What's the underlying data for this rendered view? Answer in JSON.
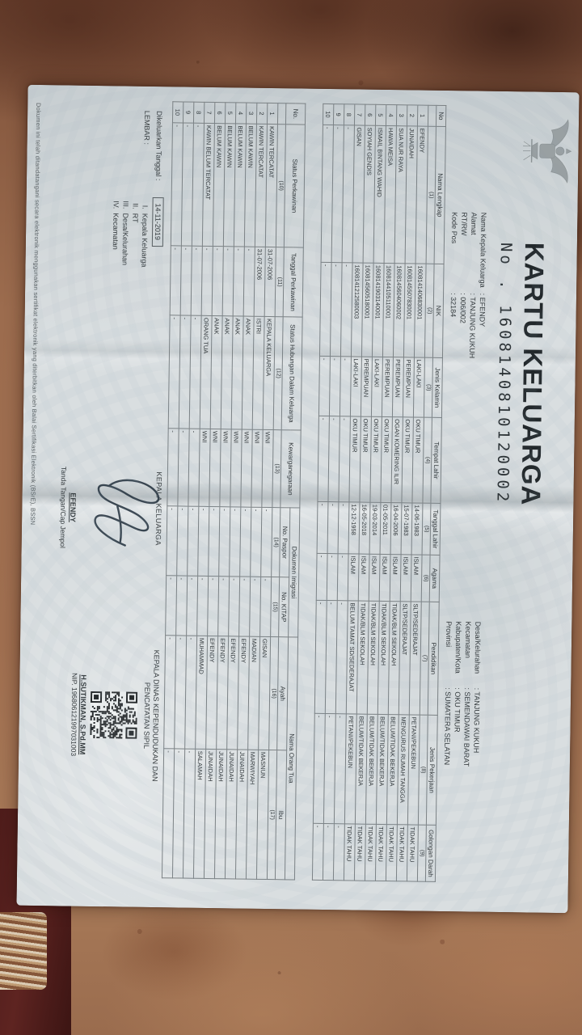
{
  "colors": {
    "paper": "#d9dee0",
    "ink": "#2f3538",
    "floor": "#96664a",
    "fabric": "#4f1d1b"
  },
  "document": {
    "title": "KARTU KELUARGA",
    "number_label": "No .",
    "number": "1608140810120002",
    "header_left": {
      "rows": [
        {
          "label": "Nama Kepala Keluarga",
          "value": ": EFENDY"
        },
        {
          "label": "Alamat",
          "value": ": TANJUNG KUKUH"
        },
        {
          "label": "RT/RW",
          "value": ": 006/002"
        },
        {
          "label": "Kode Pos",
          "value": ": 32184"
        }
      ]
    },
    "header_right": {
      "rows": [
        {
          "label": "Desa/Kelurahan",
          "value": ": TANJUNG KUKUH"
        },
        {
          "label": "Kecamatan",
          "value": ": SEMENDAWAI BARAT"
        },
        {
          "label": "Kabupaten/Kota",
          "value": ": OKU TIMUR"
        },
        {
          "label": "Provinsi",
          "value": ": SUMATERA SELATAN"
        }
      ]
    }
  },
  "table1": {
    "columns": [
      {
        "label": "No",
        "num": ""
      },
      {
        "label": "Nama Lengkap",
        "num": "(1)"
      },
      {
        "label": "NIK",
        "num": "(2)"
      },
      {
        "label": "Jenis Kelamin",
        "num": "(3)"
      },
      {
        "label": "Tempat Lahir",
        "num": "(4)"
      },
      {
        "label": "Tanggal Lahir",
        "num": "(5)"
      },
      {
        "label": "Agama",
        "num": "(6)"
      },
      {
        "label": "Pendidikan",
        "num": "(7)"
      },
      {
        "label": "Jenis Pekerjaan",
        "num": "(8)"
      },
      {
        "label": "Golongan Darah",
        "num": "(9)"
      }
    ],
    "rows": [
      [
        "1",
        "EFENDY",
        "1608141406830001",
        "LAKI-LAKI",
        "OKU TIMUR",
        "14-06-1983",
        "ISLAM",
        "SLTP/SEDERAJAT",
        "PETANI/PEKEBUN",
        "TIDAK TAHU"
      ],
      [
        "2",
        "JUNAIDAH",
        "1608145507830001",
        "PEREMPUAN",
        "OKU TIMUR",
        "15-07-1983",
        "ISLAM",
        "SLTP/SEDERAJAT",
        "MENGURUS RUMAH TANGGA",
        "TIDAK TAHU"
      ],
      [
        "3",
        "SUA NUR RAYA",
        "1608145604060002",
        "PEREMPUAN",
        "OGAN KOMERING ILIR",
        "16-04-2006",
        "ISLAM",
        "TIDAK/BLM SEKOLAH",
        "BELUM/TIDAK BEKERJA",
        "TIDAK TAHU"
      ],
      [
        "4",
        "HAWA MEISA",
        "1608144105110001",
        "PEREMPUAN",
        "OKU TIMUR",
        "01-05-2011",
        "ISLAM",
        "TIDAK/BLM SEKOLAH",
        "BELUM/TIDAK BEKERJA",
        "TIDAK TAHU"
      ],
      [
        "5",
        "ISMAIL BINTANG WAHID",
        "1608141903140001",
        "LAKI-LAKI",
        "OKU TIMUR",
        "19-03-2014",
        "ISLAM",
        "TIDAK/BLM SEKOLAH",
        "BELUM/TIDAK BEKERJA",
        "TIDAK TAHU"
      ],
      [
        "6",
        "SOYIAH GENDIS",
        "1608145605180001",
        "PEREMPUAN",
        "OKU TIMUR",
        "16-05-2018",
        "ISLAM",
        "TIDAK/BLM SEKOLAH",
        "BELUM/TIDAK BEKERJA",
        "TIDAK TAHU"
      ],
      [
        "7",
        "GISAN",
        "1608141212580003",
        "LAKI-LAKI",
        "OKU TIMUR",
        "12-12-1958",
        "ISLAM",
        "BELUM TAMAT SD/SEDERAJAT",
        "PETANI/PEKEBUN",
        "TIDAK TAHU"
      ],
      [
        "8",
        "-",
        "-",
        "-",
        "-",
        "-",
        "-",
        "-",
        "-",
        "-"
      ],
      [
        "9",
        "-",
        "-",
        "-",
        "-",
        "-",
        "-",
        "-",
        "-",
        "-"
      ],
      [
        "10",
        "-",
        "-",
        "-",
        "-",
        "-",
        "-",
        "-",
        "-",
        "-"
      ]
    ]
  },
  "table2": {
    "groups": [
      {
        "label": "Dokumen Imigrasi"
      },
      {
        "label": "Nama Orang Tua"
      }
    ],
    "columns": [
      {
        "label": "No.",
        "num": ""
      },
      {
        "label": "Status Perkawinan",
        "num": "(10)"
      },
      {
        "label": "Tanggal Perkawinan",
        "num": "(11)"
      },
      {
        "label": "Status Hubungan Dalam Keluarga",
        "num": "(12)"
      },
      {
        "label": "Kewarganegaraan",
        "num": "(13)"
      },
      {
        "label": "No. Paspor",
        "num": "(14)"
      },
      {
        "label": "No. KITAP",
        "num": "(15)"
      },
      {
        "label": "Ayah",
        "num": "(16)"
      },
      {
        "label": "Ibu",
        "num": "(17)"
      }
    ],
    "rows": [
      [
        "1",
        "KAWIN TERCATAT",
        "31-07-2006",
        "KEPALA KELUARGA",
        "WNI",
        "-",
        "-",
        "GISAN",
        "MASNUN"
      ],
      [
        "2",
        "KAWIN TERCATAT",
        "31-07-2006",
        "ISTRI",
        "WNI",
        "-",
        "-",
        "MADIAN",
        "MARWIYAH"
      ],
      [
        "3",
        "BELUM KAWIN",
        "-",
        "ANAK",
        "WNI",
        "-",
        "-",
        "EFENDY",
        "JUNAIDAH"
      ],
      [
        "4",
        "BELUM KAWIN",
        "-",
        "ANAK",
        "WNI",
        "-",
        "-",
        "EFENDY",
        "JUNAIDAH"
      ],
      [
        "5",
        "BELUM KAWIN",
        "-",
        "ANAK",
        "WNI",
        "-",
        "-",
        "EFENDY",
        "JUNAIDAH"
      ],
      [
        "6",
        "BELUM KAWIN",
        "-",
        "ANAK",
        "WNI",
        "-",
        "-",
        "EFENDY",
        "JUNAIDAH"
      ],
      [
        "7",
        "KAWIN BELUM TERCATAT",
        "-",
        "ORANG TUA",
        "WNI",
        "-",
        "-",
        "MUHAMMAD",
        "SALAMAH"
      ],
      [
        "8",
        "-",
        "-",
        "-",
        "-",
        "-",
        "-",
        "-",
        "-"
      ],
      [
        "9",
        "-",
        "-",
        "-",
        "-",
        "-",
        "-",
        "-",
        "-"
      ],
      [
        "10",
        "-",
        "-",
        "-",
        "-",
        "-",
        "-",
        "-",
        "-"
      ]
    ]
  },
  "footer": {
    "issued_label": "Dikeluarkan Tanggal :",
    "issued_date": "14-11-2019",
    "lembar_label": "LEMBAR :",
    "lembar_items": [
      {
        "num": "I.",
        "text": "Kepala Keluarga"
      },
      {
        "num": "II.",
        "text": "RT"
      },
      {
        "num": "III.",
        "text": "Desa/Kelurahan"
      },
      {
        "num": "IV.",
        "text": "Kecamatan"
      }
    ],
    "head_title": "KEPALA KELUARGA",
    "head_name": "EFENDY",
    "head_caption": "Tanda Tangan/Cap Jempol",
    "official_title": "KEPALA DINAS KEPENDUDUKAN DAN\nPENCATATAN SIPIL",
    "official_name": "H.SUTIKMAN, S.Pd.MM",
    "official_nip": "NIP. 196806121997031003"
  },
  "fineprint": "Dokumen ini telah ditandatangani secara elektronik menggunakan sertifikat elektronik yang diterbitkan oleh Balai Sertifikasi Elektronik (BSrE), BSSN"
}
